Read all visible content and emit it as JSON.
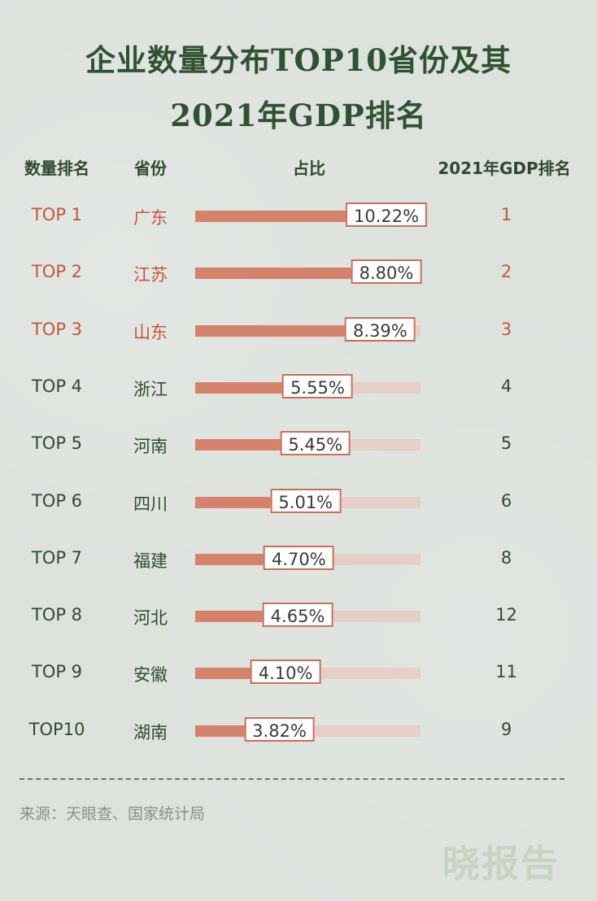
{
  "title_line1": "企业数量分布TOP10省份及其",
  "title_line2": "2021年GDP排名",
  "headers": {
    "rank": "数量排名",
    "province": "省份",
    "share": "占比",
    "gdp_rank": "2021年GDP排名"
  },
  "chart_data": {
    "type": "bar",
    "orientation": "horizontal",
    "columns": [
      "数量排名",
      "省份",
      "占比",
      "2021年GDP排名"
    ],
    "categories": [
      "广东",
      "江苏",
      "山东",
      "浙江",
      "河南",
      "四川",
      "福建",
      "河北",
      "安徽",
      "湖南"
    ],
    "rank_labels": [
      "TOP 1",
      "TOP 2",
      "TOP 3",
      "TOP 4",
      "TOP 5",
      "TOP 6",
      "TOP 7",
      "TOP 8",
      "TOP 9",
      "TOP10"
    ],
    "values": [
      10.22,
      8.8,
      8.39,
      5.55,
      5.45,
      5.01,
      4.7,
      4.65,
      4.1,
      3.82
    ],
    "value_labels": [
      "10.22%",
      "8.80%",
      "8.39%",
      "5.55%",
      "5.45%",
      "5.01%",
      "4.70%",
      "4.65%",
      "4.10%",
      "3.82%"
    ],
    "gdp_rank": [
      "1",
      "2",
      "3",
      "4",
      "5",
      "6",
      "8",
      "12",
      "11",
      "9"
    ],
    "xlim": [
      0,
      10.22
    ],
    "highlight_rows": [
      0,
      1,
      2
    ]
  },
  "colors": {
    "title": "#2f5232",
    "highlight_text": "#c0583a",
    "normal_text": "#2f4a2f",
    "bar_fill": "#d5826c",
    "bar_track": "#e5cfc6",
    "label_border": "#c96f58",
    "background": "#dde2dd"
  },
  "source": "来源：天眼查、国家统计局",
  "logo": "晓报告"
}
